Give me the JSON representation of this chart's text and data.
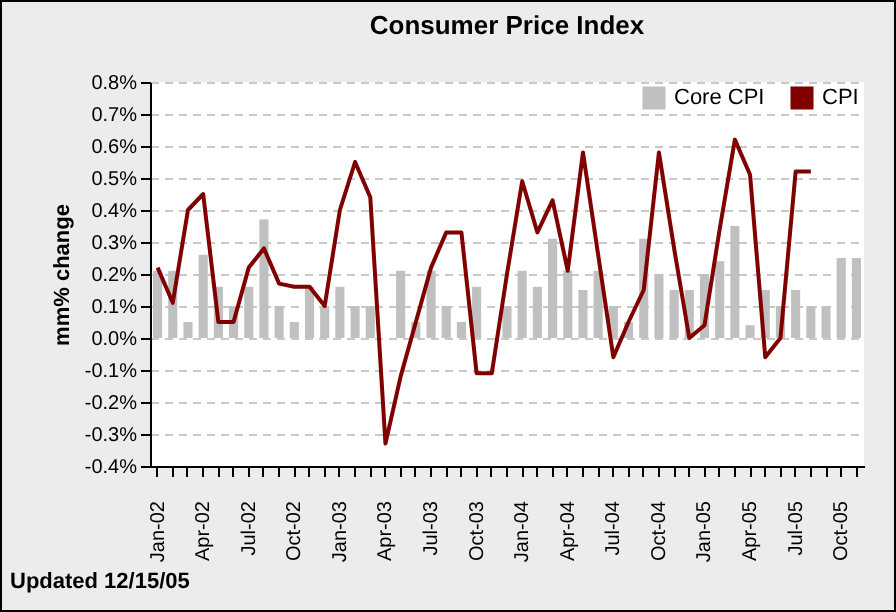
{
  "chart_data": {
    "type": "bar",
    "title": "Consumer Price Index",
    "ylabel": "mm% change",
    "categories": [
      "Jan-02",
      null,
      null,
      "Apr-02",
      null,
      null,
      "Jul-02",
      null,
      null,
      "Oct-02",
      null,
      null,
      "Jan-03",
      null,
      null,
      "Apr-03",
      null,
      null,
      "Jul-03",
      null,
      null,
      "Oct-03",
      null,
      null,
      "Jan-04",
      null,
      null,
      "Apr-04",
      null,
      null,
      "Jul-04",
      null,
      null,
      "Oct-04",
      null,
      null,
      "Jan-05",
      null,
      null,
      "Apr-05",
      null,
      null,
      "Jul-05",
      null,
      null,
      "Oct-05",
      null
    ],
    "series": [
      {
        "name": "Core CPI",
        "color": "#c0c0c0",
        "values": [
          0.21,
          0.21,
          0.05,
          0.26,
          0.16,
          0.1,
          0.16,
          0.37,
          0.1,
          0.05,
          0.16,
          0.1,
          0.16,
          0.1,
          0.1,
          0.0,
          0.21,
          0.05,
          0.21,
          0.1,
          0.05,
          0.16,
          0.0,
          0.1,
          0.21,
          0.16,
          0.31,
          0.21,
          0.15,
          0.21,
          0.1,
          0.05,
          0.31,
          0.2,
          0.15,
          0.15,
          0.2,
          0.24,
          0.35,
          0.04,
          0.15,
          0.1,
          0.15,
          0.1,
          0.1,
          0.25,
          0.25
        ]
      },
      {
        "name": "CPI",
        "type": "line",
        "color": "#800000",
        "values": [
          0.22,
          0.11,
          0.4,
          0.45,
          0.05,
          0.05,
          0.22,
          0.28,
          0.17,
          0.16,
          0.16,
          0.1,
          0.4,
          0.55,
          0.44,
          -0.33,
          -0.12,
          0.05,
          0.22,
          0.33,
          0.33,
          -0.11,
          -0.11,
          0.2,
          0.49,
          0.33,
          0.43,
          0.21,
          0.58,
          0.26,
          -0.06,
          0.05,
          0.15,
          0.58,
          0.28,
          0.0,
          0.04,
          0.34,
          0.62,
          0.51,
          -0.06,
          0.0,
          0.52,
          0.52,
          null,
          null,
          null
        ]
      }
    ],
    "ylim": [
      -0.4,
      0.8
    ],
    "yticks": [
      {
        "value": -0.4,
        "label": "-0.4%"
      },
      {
        "value": -0.3,
        "label": "-0.3%"
      },
      {
        "value": -0.2,
        "label": "-0.2%"
      },
      {
        "value": -0.1,
        "label": "-0.1%"
      },
      {
        "value": 0,
        "label": "0.0%"
      },
      {
        "value": 0.1,
        "label": "0.1%"
      },
      {
        "value": 0.2,
        "label": "0.2%"
      },
      {
        "value": 0.3,
        "label": "0.3%"
      },
      {
        "value": 0.4,
        "label": "0.4%"
      },
      {
        "value": 0.5,
        "label": "0.5%"
      },
      {
        "value": 0.6,
        "label": "0.6%"
      },
      {
        "value": 0.7,
        "label": "0.7%"
      },
      {
        "value": 0.8,
        "label": "0.8%"
      }
    ],
    "grid": "y",
    "legend": "top right",
    "line_style": "solid",
    "marker": "none",
    "annotations": [
      "Updated 12/15/05"
    ]
  }
}
